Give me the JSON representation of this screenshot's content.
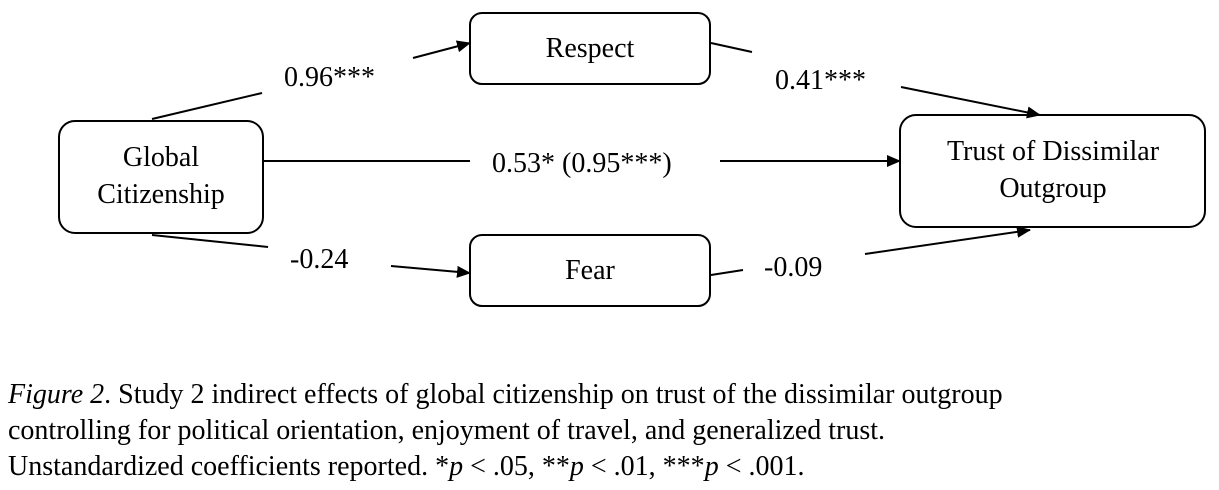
{
  "nodes": {
    "global": {
      "line1": "Global",
      "line2": "Citizenship"
    },
    "respect": {
      "label": "Respect"
    },
    "fear": {
      "label": "Fear"
    },
    "trust": {
      "line1": "Trust of Dissimilar",
      "line2": "Outgroup"
    }
  },
  "edges": {
    "global_to_respect": "0.96***",
    "respect_to_trust": "0.41***",
    "global_to_trust": "0.53* (0.95***)",
    "global_to_fear": "-0.24",
    "fear_to_trust": "-0.09"
  },
  "caption": {
    "figure_label": "Figure 2",
    "line1_rest": ". Study 2 indirect effects of global citizenship on trust of the dissimilar outgroup",
    "line2": "controlling for political orientation, enjoyment of travel, and generalized trust.",
    "line3_prefix": "Unstandardized coefficients reported. *",
    "p1": "p",
    "sig1": " < .05, **",
    "p2": "p",
    "sig2": " < .01, ***",
    "p3": "p",
    "sig3": " < .001."
  }
}
